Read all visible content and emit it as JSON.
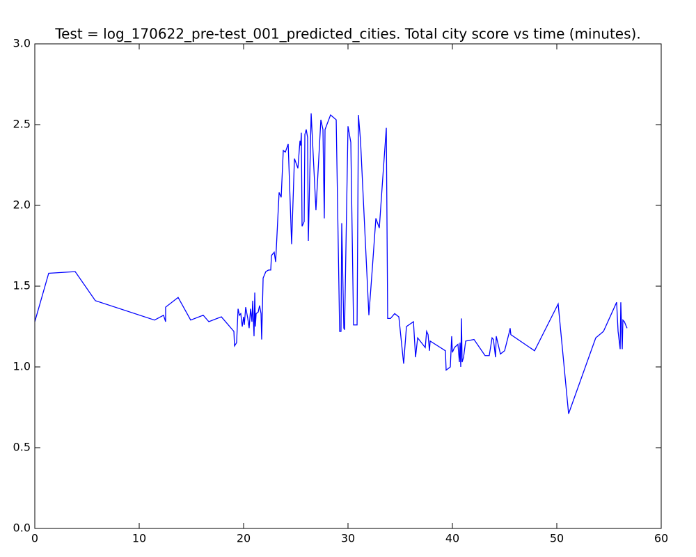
{
  "chart_data": {
    "type": "line",
    "title": "Test = log_170622_pre-test_001_predicted_cities. Total city score vs time (minutes).",
    "x": [
      0,
      1.33,
      3.87,
      5.8,
      11.47,
      12.33,
      12.53,
      12.53,
      13.73,
      14.93,
      16.13,
      16.67,
      17.87,
      19.07,
      19.13,
      19.33,
      19.47,
      19.6,
      19.73,
      19.87,
      20.0,
      20.07,
      20.2,
      20.4,
      20.53,
      20.67,
      20.8,
      20.87,
      21.0,
      21.07,
      21.13,
      21.2,
      21.4,
      21.53,
      21.67,
      21.73,
      21.87,
      22.13,
      22.4,
      22.6,
      22.67,
      22.93,
      23.07,
      23.4,
      23.6,
      23.8,
      24.0,
      24.27,
      24.6,
      24.87,
      25.2,
      25.4,
      25.47,
      25.53,
      25.6,
      25.8,
      25.87,
      26.0,
      26.13,
      26.2,
      26.47,
      26.93,
      27.4,
      27.6,
      27.73,
      27.8,
      28.33,
      28.87,
      29.2,
      29.33,
      29.4,
      29.6,
      29.67,
      30.0,
      30.27,
      30.53,
      30.87,
      31.0,
      31.2,
      32.0,
      32.33,
      32.67,
      33.0,
      33.33,
      33.67,
      33.8,
      34.07,
      34.47,
      34.87,
      35.33,
      35.6,
      36.27,
      36.47,
      36.67,
      37.4,
      37.53,
      37.67,
      37.8,
      37.87,
      39.33,
      39.4,
      39.8,
      39.93,
      40.0,
      40.2,
      40.53,
      40.67,
      40.73,
      40.8,
      40.87,
      40.93,
      41.07,
      41.27,
      42.07,
      43.13,
      43.53,
      43.8,
      43.93,
      44.13,
      44.2,
      44.6,
      45.0,
      45.47,
      45.53,
      45.6,
      47.87,
      50.13,
      51.13,
      53.73,
      54.47,
      55.73,
      55.87,
      56.07,
      56.13,
      56.27,
      56.33,
      56.47,
      56.73
    ],
    "series": [
      {
        "color": "#0000ff",
        "values": [
          1.28,
          1.58,
          1.59,
          1.41,
          1.29,
          1.32,
          1.28,
          1.37,
          1.43,
          1.29,
          1.32,
          1.28,
          1.31,
          1.22,
          1.13,
          1.15,
          1.36,
          1.32,
          1.33,
          1.25,
          1.31,
          1.26,
          1.37,
          1.3,
          1.24,
          1.36,
          1.28,
          1.41,
          1.19,
          1.46,
          1.25,
          1.33,
          1.34,
          1.38,
          1.33,
          1.17,
          1.55,
          1.59,
          1.6,
          1.6,
          1.69,
          1.71,
          1.65,
          2.08,
          2.05,
          2.34,
          2.33,
          2.38,
          1.76,
          2.29,
          2.23,
          2.4,
          2.37,
          2.45,
          1.87,
          1.9,
          2.44,
          2.47,
          2.42,
          1.78,
          2.57,
          1.97,
          2.53,
          2.47,
          1.92,
          2.47,
          2.56,
          2.53,
          1.22,
          1.22,
          1.89,
          1.24,
          1.23,
          2.49,
          2.39,
          1.26,
          1.26,
          2.56,
          2.4,
          1.32,
          1.61,
          1.92,
          1.86,
          2.17,
          2.48,
          1.3,
          1.3,
          1.33,
          1.31,
          1.02,
          1.25,
          1.28,
          1.06,
          1.18,
          1.12,
          1.22,
          1.2,
          1.1,
          1.16,
          1.1,
          0.98,
          1.0,
          1.19,
          1.09,
          1.12,
          1.14,
          1.03,
          1.15,
          1.0,
          1.3,
          1.03,
          1.06,
          1.16,
          1.17,
          1.07,
          1.07,
          1.18,
          1.17,
          1.06,
          1.19,
          1.08,
          1.1,
          1.22,
          1.24,
          1.2,
          1.1,
          1.39,
          0.71,
          1.18,
          1.22,
          1.4,
          1.22,
          1.11,
          1.4,
          1.11,
          1.29,
          1.28,
          1.24
        ]
      }
    ],
    "xlim": [
      0,
      60
    ],
    "xticks": [
      0,
      10,
      20,
      30,
      40,
      50,
      60
    ],
    "ylim": [
      0,
      3
    ],
    "yticks": [
      {
        "value": 0,
        "label": "0.0"
      },
      {
        "value": 0.5,
        "label": "0.5"
      },
      {
        "value": 1,
        "label": "1.0"
      },
      {
        "value": 1.5,
        "label": "1.5"
      },
      {
        "value": 2,
        "label": "2.0"
      },
      {
        "value": 2.5,
        "label": "2.5"
      },
      {
        "value": 3,
        "label": "3.0"
      }
    ],
    "grid": false
  }
}
